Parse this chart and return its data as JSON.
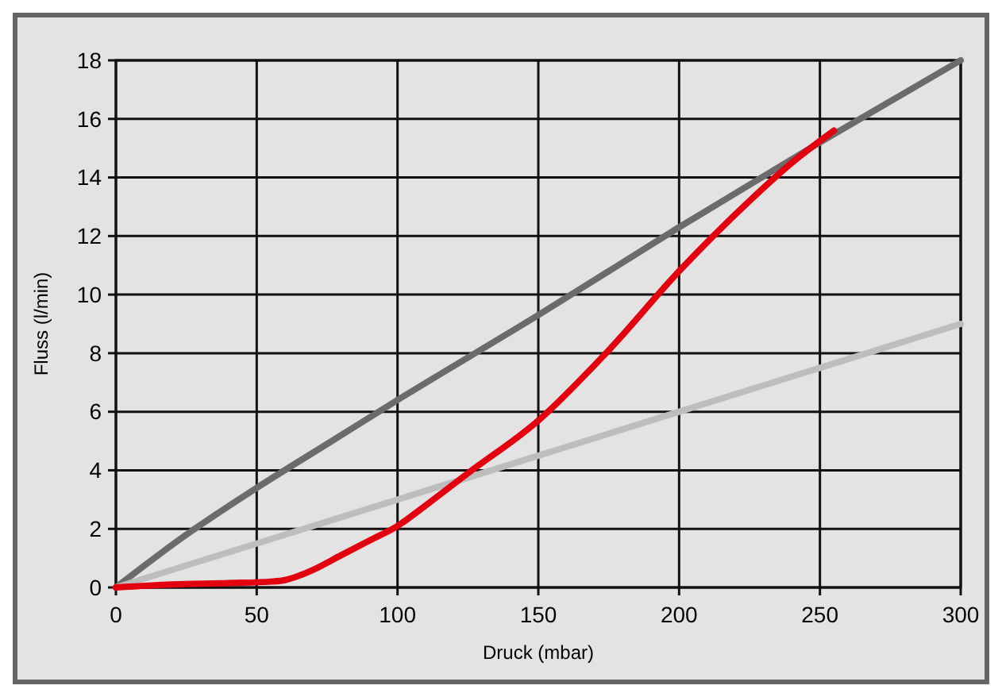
{
  "chart_data": {
    "type": "line",
    "xlabel": "Druck (mbar)",
    "ylabel": "Fluss (l/min)",
    "xlim": [
      0,
      300
    ],
    "ylim": [
      0,
      18
    ],
    "xticks": [
      0,
      50,
      100,
      150,
      200,
      250,
      300
    ],
    "yticks": [
      0,
      2,
      4,
      6,
      8,
      10,
      12,
      14,
      16,
      18
    ],
    "grid": true,
    "series": [
      {
        "color": "#6b6b6b",
        "x": [
          0,
          25,
          50,
          75,
          100,
          150,
          200,
          250,
          300
        ],
        "values": [
          0,
          1.8,
          3.4,
          4.9,
          6.4,
          9.3,
          12.3,
          15.2,
          18
        ]
      },
      {
        "color": "#bdbdbd",
        "x": [
          0,
          100,
          200,
          300
        ],
        "values": [
          0,
          3,
          6,
          9
        ]
      },
      {
        "color": "#e3000f",
        "x": [
          0,
          20,
          40,
          55,
          60,
          65,
          70,
          80,
          90,
          100,
          110,
          125,
          150,
          175,
          200,
          225,
          240,
          255
        ],
        "values": [
          0,
          0.1,
          0.15,
          0.2,
          0.25,
          0.4,
          0.6,
          1.1,
          1.6,
          2.1,
          2.8,
          3.9,
          5.7,
          8.1,
          10.8,
          13.2,
          14.5,
          15.6
        ]
      }
    ]
  }
}
